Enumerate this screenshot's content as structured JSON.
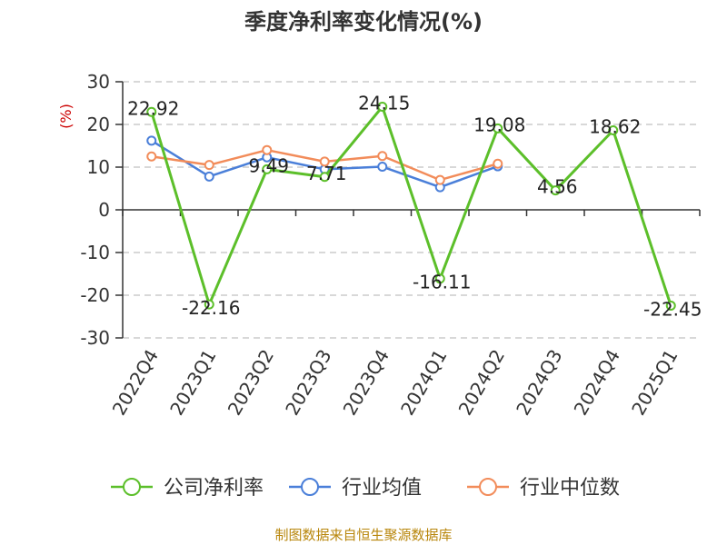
{
  "chart_data": {
    "type": "line",
    "title": "季度净利率变化情况(%)",
    "ylabel": "(%)",
    "categories": [
      "2022Q4",
      "2023Q1",
      "2023Q2",
      "2023Q3",
      "2023Q4",
      "2024Q1",
      "2024Q2",
      "2024Q3",
      "2024Q4",
      "2025Q1"
    ],
    "ylim": [
      -30,
      30
    ],
    "yticks": [
      30,
      20,
      10,
      0,
      -10,
      -20,
      -30
    ],
    "grid": true,
    "legend_position": "bottom",
    "series": [
      {
        "name": "公司净利率",
        "color": "#5cbf2a",
        "labeled": true,
        "values": [
          22.92,
          -22.16,
          9.49,
          7.71,
          24.15,
          -16.11,
          19.08,
          4.56,
          18.62,
          -22.45
        ],
        "labels": [
          "22.92",
          "-22.16",
          "9.49",
          "7.71",
          "24.15",
          "-16.11",
          "19.08",
          "4.56",
          "18.62",
          "-22.45"
        ]
      },
      {
        "name": "行业均值",
        "color": "#4a7fd9",
        "labeled": false,
        "values": [
          16.2,
          7.8,
          12.3,
          9.5,
          10.1,
          5.3,
          10.2,
          null,
          null,
          null
        ]
      },
      {
        "name": "行业中位数",
        "color": "#f28c5a",
        "labeled": false,
        "values": [
          12.5,
          10.5,
          14.0,
          11.3,
          12.6,
          7.0,
          10.8,
          null,
          null,
          null
        ]
      }
    ],
    "source": "制图数据来自恒生聚源数据库"
  }
}
